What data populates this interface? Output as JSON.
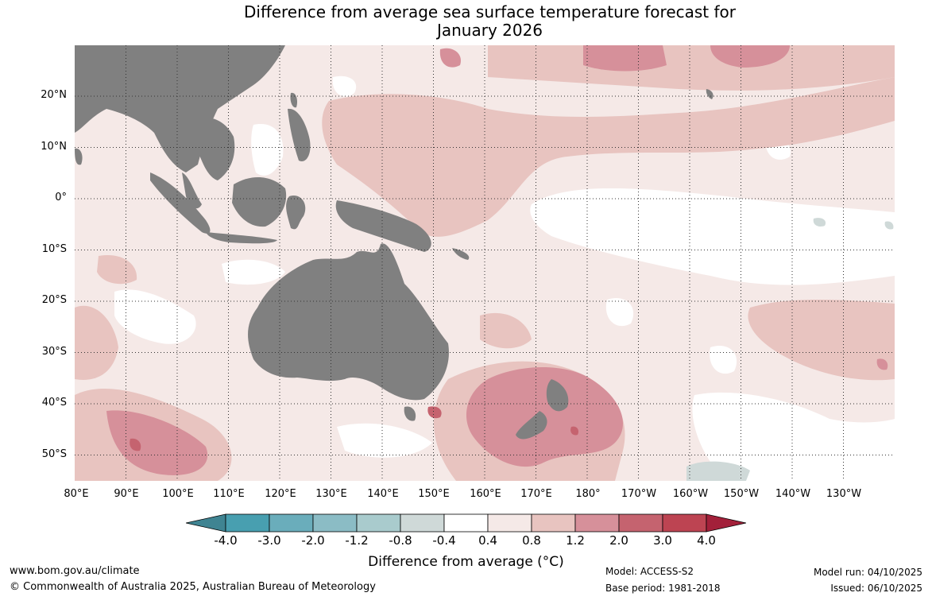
{
  "title": {
    "line1": "Difference from average sea surface temperature forecast for",
    "line2": "January 2026"
  },
  "map": {
    "latitude_labels": [
      "20°N",
      "10°N",
      "0°",
      "10°S",
      "20°S",
      "30°S",
      "40°S",
      "50°S"
    ],
    "longitude_labels": [
      "80°E",
      "90°E",
      "100°E",
      "110°E",
      "120°E",
      "130°E",
      "140°E",
      "150°E",
      "160°E",
      "170°E",
      "180°",
      "170°W",
      "160°W",
      "150°W",
      "140°W",
      "130°W"
    ],
    "region": "Indian Ocean, Maritime Continent, Australia, Western Pacific",
    "colors": {
      "land": "#808080",
      "anom_0_4_to_0_8": "#f5e9e7",
      "anom_0_8_to_1_2": "#e8c4c0",
      "anom_1_2_to_2_0": "#d6909a",
      "anom_2_0_to_3_0": "#c5636f",
      "anom_neg_0_8_to_neg_0_4": "#cfd9d8"
    }
  },
  "colorbar": {
    "ticks": [
      "-4.0",
      "-3.0",
      "-2.0",
      "-1.2",
      "-0.8",
      "-0.4",
      "0.4",
      "0.8",
      "1.2",
      "2.0",
      "3.0",
      "4.0"
    ],
    "colors": [
      "#489fb0",
      "#6aadbb",
      "#8bbcc5",
      "#a9cbcd",
      "#cfd9d8",
      "#ffffff",
      "#f5e9e7",
      "#e8c4c0",
      "#d6909a",
      "#c5636f",
      "#bd4452"
    ],
    "low_extend_color": "#3f8492",
    "high_extend_color": "#a3203a",
    "title": "Difference from average (°C)"
  },
  "footer": {
    "website": "www.bom.gov.au/climate",
    "copyright": "© Commonwealth of Australia 2025, Australian Bureau of Meteorology",
    "model": "Model: ACCESS-S2",
    "base_period": "Base period: 1981-2018",
    "model_run": "Model run: 04/10/2025",
    "issued": "Issued: 06/10/2025"
  }
}
